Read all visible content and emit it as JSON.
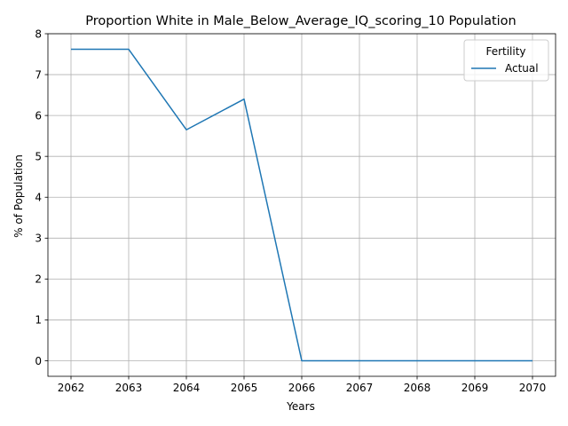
{
  "chart_data": {
    "type": "line",
    "title": "Proportion White in Male_Below_Average_IQ_scoring_10 Population",
    "xlabel": "Years",
    "ylabel": "% of Population",
    "x": [
      2062,
      2063,
      2064,
      2065,
      2066,
      2067,
      2068,
      2069,
      2070
    ],
    "xticks": [
      "2062",
      "2063",
      "2064",
      "2065",
      "2066",
      "2067",
      "2068",
      "2069",
      "2070"
    ],
    "yticks": [
      "0",
      "1",
      "2",
      "3",
      "4",
      "5",
      "6",
      "7",
      "8"
    ],
    "xlim": [
      2061.6,
      2070.4
    ],
    "ylim": [
      -0.38,
      8
    ],
    "grid": true,
    "legend": {
      "title": "Fertility",
      "placement": "top-right"
    },
    "series": [
      {
        "name": "Actual",
        "color": "#1f77b4",
        "values": [
          7.62,
          7.62,
          5.65,
          6.4,
          0,
          0,
          0,
          0,
          0
        ]
      }
    ]
  }
}
